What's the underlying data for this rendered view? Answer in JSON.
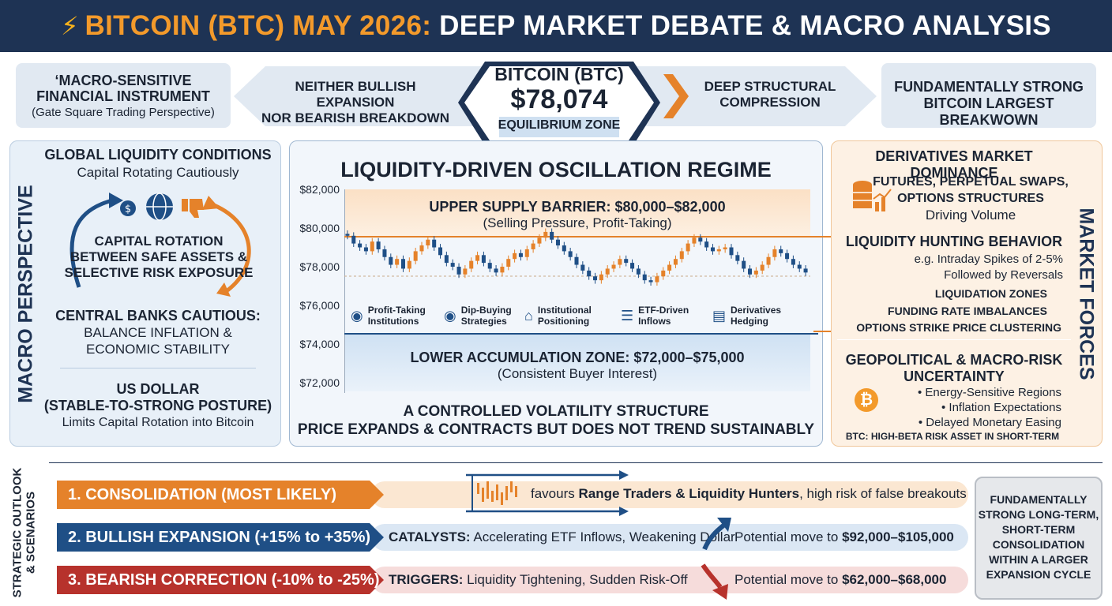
{
  "header": {
    "title_prefix": "BITCOIN (BTC) MAY 2026:",
    "title_suffix": "DEEP MARKET DEBATE & MACRO ANALYSIS",
    "bolt_icon": "lightning-icon"
  },
  "top_row": {
    "left_box": {
      "line1": "‘MACRO-SENSITIVE",
      "line2": "FINANCIAL INSTRUMENT",
      "line3": "(Gate Square Trading Perspective)"
    },
    "arrow_left": {
      "line1": "NEITHER BULLISH EXPANSION",
      "line2": "NOR BEARISH BREAKDOWN"
    },
    "center": {
      "name": "BITCOIN (BTC)",
      "price": "$78,074",
      "zone": "EQUILIBRIUM ZONE"
    },
    "arrow_right": {
      "line1": "DEEP STRUCTURAL",
      "line2": "COMPRESSION"
    },
    "right_box": {
      "line1": "FUNDAMENTALLY STRONG",
      "line2": "BITCOIN LARGEST BREAKWOWN"
    }
  },
  "macro_panel": {
    "side_label": "MACRO PERSPECTIVE",
    "liquidity_title": "GLOBAL LIQUIDITY CONDITIONS",
    "liquidity_sub": "Capital Rotating Cautiously",
    "rotation_line1": "CAPITAL ROTATION",
    "rotation_line2": "BETWEEN SAFE ASSETS &",
    "rotation_line3": "SELECTIVE RISK EXPOSURE",
    "central_title": "CENTRAL BANKS CAUTIOUS:",
    "central_sub1": "BALANCE INFLATION &",
    "central_sub2": "ECONOMIC STABILITY",
    "usd_title1": "US DOLLAR",
    "usd_title2": "(STABLE-TO-STRONG POSTURE)",
    "usd_sub": "Limits Capital Rotation into Bitcoin",
    "icons": [
      "money-bag-icon",
      "globe-icon",
      "thumbs-down-icon"
    ]
  },
  "regime_panel": {
    "title": "LIQUIDITY-DRIVEN OSCILLATION REGIME",
    "upper_title": "UPPER SUPPLY BARRIER: $80,000–$82,000",
    "upper_sub": "(Selling Pressure, Profit-Taking)",
    "lower_title": "LOWER ACCUMULATION ZONE: $72,000–$75,000",
    "lower_sub": "(Consistent Buyer Interest)",
    "footer1": "A CONTROLLED VOLATILITY STRUCTURE",
    "footer2": "PRICE EXPANDS & CONTRACTS BUT DOES NOT TREND SUSTAINABLY",
    "y_ticks": [
      "$82,000",
      "$80,000",
      "$78,000",
      "$76,000",
      "$74,000",
      "$72,000"
    ],
    "participants": [
      {
        "icon": "hand-coin-icon",
        "line1": "Profit-Taking",
        "line2": "Institutions"
      },
      {
        "icon": "hand-coin-icon",
        "line1": "Dip-Buying",
        "line2": "Strategies"
      },
      {
        "icon": "bank-icon",
        "line1": "Institutional",
        "line2": "Positioning"
      },
      {
        "icon": "coin-stack-icon",
        "line1": "ETF-Driven",
        "line2": "Inflows"
      },
      {
        "icon": "chart-doc-icon",
        "line1": "Derivatives",
        "line2": "Hedging"
      }
    ]
  },
  "forces_panel": {
    "side_label": "MARKET FORCES",
    "deriv_title": "DERIVATIVES MARKET DOMINANCE",
    "deriv_l1": "FUTURES, PERPETUAL SWAPS,",
    "deriv_l2": "OPTIONS STRUCTURES",
    "deriv_l3": "Driving Volume",
    "hunt_title": "LIQUIDITY HUNTING BEHAVIOR",
    "hunt_l1": "e.g. Intraday Spikes of 2-5%",
    "hunt_l2": "Followed by Reversals",
    "items": [
      "LIQUIDATION ZONES",
      "FUNDING RATE IMBALANCES",
      "OPTIONS STRIKE PRICE CLUSTERING"
    ],
    "geo_title1": "GEOPOLITICAL & MACRO-RISK",
    "geo_title2": "UNCERTAINTY",
    "geo_bullets": [
      "• Energy-Sensitive Regions",
      "• Inflation Expectations",
      "• Delayed Monetary Easing"
    ],
    "geo_footer": "BTC: HIGH-BETA RISK ASSET IN SHORT-TERM",
    "btc_symbol": "₿"
  },
  "outlook": {
    "side_label1": "STRATEGIC OUTLOOK",
    "side_label2": "& SCENARIOS",
    "scenarios": [
      {
        "label": "1. CONSOLIDATION (MOST LIKELY)",
        "text_pre": "favours ",
        "text_bold": "Range Traders & Liquidity Hunters",
        "text_post": ", high risk of false breakouts",
        "color": "#e5822a",
        "track": "#fbe7d2"
      },
      {
        "label": "2. BULLISH EXPANSION (+15% to +35%)",
        "prefix": "CATALYSTS:",
        "text": " Accelerating ETF Inflows, Weakening Dollar",
        "move_pre": "Potential move to ",
        "move": "$92,000–$105,000",
        "color": "#1f4f86",
        "track": "#dbe7f4"
      },
      {
        "label": "3. BEARISH CORRECTION (-10% to -25%)",
        "prefix": "TRIGGERS:",
        "text": " Liquidity Tightening, Sudden Risk-Off",
        "move_pre": "Potential move to ",
        "move": "$62,000–$68,000",
        "color": "#b7322c",
        "track": "#f6dcdb"
      }
    ],
    "summary": [
      "FUNDAMENTALLY",
      "STRONG LONG-TERM,",
      "SHORT-TERM",
      "CONSOLIDATION",
      "WITHIN A LARGER",
      "EXPANSION CYCLE"
    ]
  },
  "chart_data": {
    "type": "candlestick",
    "ylim": [
      72000,
      82000
    ],
    "closes": [
      79600,
      79200,
      79000,
      78800,
      79300,
      78900,
      78500,
      78100,
      78400,
      77900,
      78300,
      78800,
      79100,
      79400,
      79000,
      78600,
      78200,
      78000,
      77600,
      77900,
      78300,
      78600,
      78200,
      77900,
      77700,
      78000,
      78400,
      78700,
      78500,
      78900,
      79200,
      79500,
      79800,
      79400,
      79100,
      78800,
      78500,
      78100,
      77800,
      77500,
      77300,
      77600,
      77900,
      78100,
      78400,
      78200,
      77900,
      77600,
      77300,
      77200,
      77500,
      77800,
      78100,
      78400,
      78800,
      79200,
      79500,
      79300,
      79000,
      78800,
      78900,
      79000,
      78600,
      78300,
      77900,
      77600,
      77800,
      78100,
      78500,
      78900,
      78700,
      78400,
      78100,
      77900,
      77700
    ]
  }
}
